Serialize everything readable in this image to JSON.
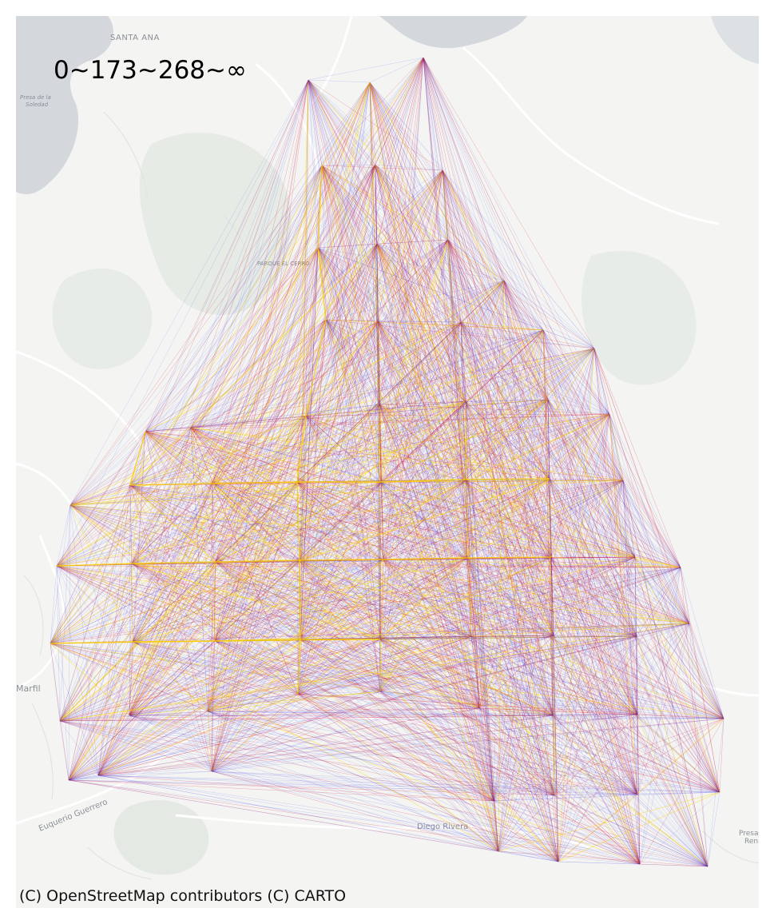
{
  "map": {
    "range_label": "0~173~268~∞",
    "attribution": "(C) OpenStreetMap contributors (C) CARTO",
    "place_labels": [
      {
        "name": "SANTA ANA"
      },
      {
        "name": "Presa de la"
      },
      {
        "name": "Soledad"
      },
      {
        "name": "PARQUE EL CERRO"
      },
      {
        "name": "Marfil"
      },
      {
        "name": "Euquerio Guerrero"
      },
      {
        "name": "Diego Rivera"
      },
      {
        "name": "Presa"
      },
      {
        "name": "Reni"
      }
    ],
    "flow_colors": {
      "low": "#1f1fe6",
      "mid": "#d4183a",
      "high": "#ffd400"
    },
    "background_color": "#f4f5f3",
    "water_color": "#d4d8dc",
    "park_color": "#e4e9e4"
  }
}
